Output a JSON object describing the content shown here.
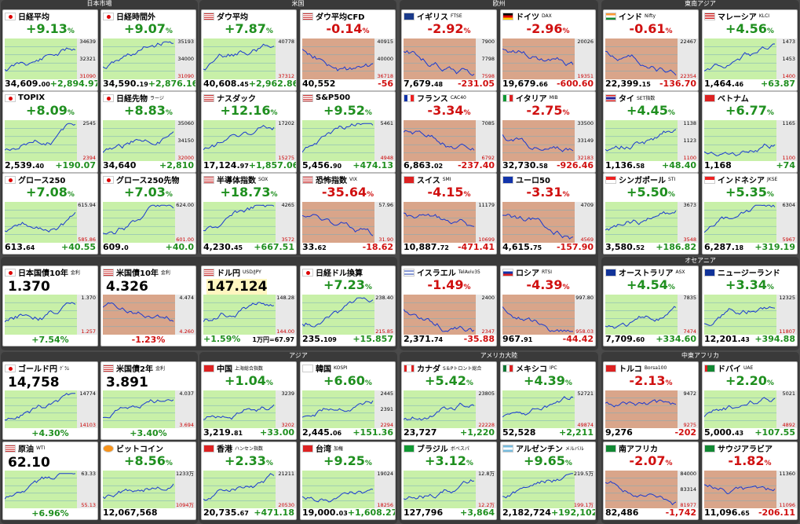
{
  "sections": {
    "japan": "日本市場",
    "us": "米国",
    "europe": "欧州",
    "east_asia": "東南アジア",
    "oceania": "オセアニア",
    "asia": "アジア",
    "americas": "アメリカ大陸",
    "mideast": "中東アフリカ"
  },
  "cards": [
    {
      "id": "nikkei",
      "flag": "jp",
      "title": "日経平均",
      "sub": "",
      "pct": "+9.13",
      "dir": "up",
      "value": "34,609.",
      "dec": "00",
      "chg": "+2,894.97",
      "ticks": [
        "34639",
        "32321",
        "31090"
      ]
    },
    {
      "id": "nikkei-night",
      "flag": "jp",
      "title": "日経時間外",
      "sub": "",
      "pct": "+9.07",
      "dir": "up",
      "value": "34,590.",
      "dec": "19",
      "chg": "+2,876.16",
      "ticks": [
        "35193",
        "34000",
        "31090"
      ]
    },
    {
      "id": "dow",
      "flag": "us",
      "title": "ダウ平均",
      "sub": "",
      "pct": "+7.87",
      "dir": "up",
      "value": "40,608.",
      "dec": "45",
      "chg": "+2,962.86",
      "ticks": [
        "40778",
        "37312"
      ]
    },
    {
      "id": "dow-cfd",
      "flag": "us",
      "title": "ダウ平均CFD",
      "sub": "",
      "pct": "-0.14",
      "dir": "dn",
      "value": "40,552",
      "dec": "",
      "chg": "-56",
      "ticks": [
        "40915",
        "40000",
        "36718"
      ]
    },
    {
      "id": "ftse",
      "flag": "gb",
      "title": "イギリス",
      "sub": "FTSE",
      "pct": "-2.92",
      "dir": "dn",
      "value": "7,679.",
      "dec": "48",
      "chg": "-231.05",
      "ticks": [
        "7900",
        "7798",
        "7598"
      ]
    },
    {
      "id": "dax",
      "flag": "de",
      "title": "ドイツ",
      "sub": "DAX",
      "pct": "-2.96",
      "dir": "dn",
      "value": "19,679.",
      "dec": "66",
      "chg": "-600.60",
      "ticks": [
        "20026",
        "19351"
      ]
    },
    {
      "id": "nifty",
      "flag": "in",
      "title": "インド",
      "sub": "Nifty",
      "pct": "-0.61",
      "dir": "dn",
      "value": "22,399.",
      "dec": "15",
      "chg": "-136.70",
      "ticks": [
        "22467",
        "22354"
      ]
    },
    {
      "id": "klci",
      "flag": "my",
      "title": "マレーシア",
      "sub": "KLCI",
      "pct": "+4.56",
      "dir": "up",
      "value": "1,464.",
      "dec": "46",
      "chg": "+63.87",
      "ticks": [
        "1473",
        "1453",
        "1400"
      ]
    },
    {
      "id": "topix",
      "flag": "jp",
      "title": "TOPIX",
      "sub": "",
      "pct": "+8.09",
      "dir": "up",
      "value": "2,539.",
      "dec": "40",
      "chg": "+190.07",
      "ticks": [
        "2545",
        "2394"
      ]
    },
    {
      "id": "nk-fut",
      "flag": "jp",
      "title": "日経先物",
      "sub": "ラージ",
      "pct": "+8.83",
      "dir": "up",
      "value": "34,640",
      "dec": "",
      "chg": "+2,810",
      "ticks": [
        "35060",
        "34150",
        "32000"
      ]
    },
    {
      "id": "nasdaq",
      "flag": "us",
      "title": "ナスダック",
      "sub": "",
      "pct": "+12.16",
      "dir": "up",
      "value": "17,124.",
      "dec": "97",
      "chg": "+1,857.06",
      "ticks": [
        "17202",
        "15275"
      ]
    },
    {
      "id": "sp500",
      "flag": "us",
      "title": "S&P500",
      "sub": "",
      "pct": "+9.52",
      "dir": "up",
      "value": "5,456.",
      "dec": "90",
      "chg": "+474.13",
      "ticks": [
        "5461",
        "4948"
      ]
    },
    {
      "id": "cac",
      "flag": "fr",
      "title": "フランス",
      "sub": "CAC40",
      "pct": "-3.34",
      "dir": "dn",
      "value": "6,863.",
      "dec": "02",
      "chg": "-237.40",
      "ticks": [
        "7085",
        "6792"
      ]
    },
    {
      "id": "mib",
      "flag": "it",
      "title": "イタリア",
      "sub": "MIB",
      "pct": "-2.75",
      "dir": "dn",
      "value": "32,730.",
      "dec": "58",
      "chg": "-926.46",
      "ticks": [
        "33500",
        "33149",
        "32183"
      ]
    },
    {
      "id": "set",
      "flag": "th",
      "title": "タイ",
      "sub": "SET指数",
      "pct": "+4.45",
      "dir": "up",
      "value": "1,136.",
      "dec": "58",
      "chg": "+48.40",
      "ticks": [
        "1138",
        "1123",
        "1100"
      ]
    },
    {
      "id": "vn",
      "flag": "vn",
      "title": "ベトナム",
      "sub": "",
      "pct": "+6.77",
      "dir": "up",
      "value": "1,168",
      "dec": "",
      "chg": "+74",
      "ticks": [
        "1165",
        "1100"
      ]
    },
    {
      "id": "growth250",
      "flag": "jp",
      "title": "グロース250",
      "sub": "",
      "pct": "+7.08",
      "dir": "up",
      "value": "613.",
      "dec": "64",
      "chg": "+40.55",
      "ticks": [
        "615.94",
        "585.86"
      ]
    },
    {
      "id": "growth-fut",
      "flag": "jp",
      "title": "グロース250先物",
      "sub": "",
      "pct": "+7.03",
      "dir": "up",
      "value": "609.",
      "dec": "0",
      "chg": "+40.0",
      "ticks": [
        "624.00",
        "601.00"
      ]
    },
    {
      "id": "sox",
      "flag": "us",
      "title": "半導体指数",
      "sub": "SOX",
      "pct": "+18.73",
      "dir": "up",
      "value": "4,230.",
      "dec": "45",
      "chg": "+667.51",
      "ticks": [
        "4265",
        "3572"
      ]
    },
    {
      "id": "vix",
      "flag": "us",
      "title": "恐怖指数",
      "sub": "VIX",
      "pct": "-35.64",
      "dir": "dn",
      "value": "33.",
      "dec": "62",
      "chg": "-18.62",
      "ticks": [
        "57.96",
        "31.90"
      ]
    },
    {
      "id": "smi",
      "flag": "ch",
      "title": "スイス",
      "sub": "SMI",
      "pct": "-4.15",
      "dir": "dn",
      "value": "10,887.",
      "dec": "72",
      "chg": "-471.41",
      "ticks": [
        "11179",
        "10699"
      ]
    },
    {
      "id": "euro50",
      "flag": "eu",
      "title": "ユーロ50",
      "sub": "",
      "pct": "-3.31",
      "dir": "dn",
      "value": "4,615.",
      "dec": "75",
      "chg": "-157.90",
      "ticks": [
        "4709",
        "4569"
      ]
    },
    {
      "id": "sti",
      "flag": "sg",
      "title": "シンガポール",
      "sub": "STI",
      "pct": "+5.50",
      "dir": "up",
      "value": "3,580.",
      "dec": "52",
      "chg": "+186.82",
      "ticks": [
        "3673",
        "3548"
      ]
    },
    {
      "id": "jkse",
      "flag": "id",
      "title": "インドネシア",
      "sub": "JKSE",
      "pct": "+5.35",
      "dir": "up",
      "value": "6,287.",
      "dec": "18",
      "chg": "+319.19",
      "ticks": [
        "6304",
        "5967"
      ]
    },
    {
      "id": "jgb10",
      "flag": "jp",
      "title": "日本国債10年",
      "sub": "金利",
      "level": "1.370",
      "foot": "+7.54%",
      "dir": "up",
      "ticks": [
        "1.370",
        "1.257"
      ]
    },
    {
      "id": "ust10",
      "flag": "us",
      "title": "米国債10年",
      "sub": "金利",
      "level": "4.326",
      "foot": "-1.23%",
      "dir": "dn",
      "ticks": [
        "4.474",
        "4.260"
      ]
    },
    {
      "id": "usdjpy",
      "flag": "us",
      "title": "ドル円",
      "sub": "USD/JPY",
      "level": "147.124",
      "pct": "+1.59%",
      "extra": "1万円=67.97",
      "dir": "up",
      "ticks": [
        "148.28",
        "144.00"
      ]
    },
    {
      "id": "nk-usd",
      "flag": "jp",
      "title": "日経ドル換算",
      "sub": "",
      "pct": "+7.23",
      "dir": "up",
      "value": "235.",
      "dec": "109",
      "chg": "+15.857",
      "ticks": [
        "238.40",
        "215.85"
      ]
    },
    {
      "id": "ta35",
      "flag": "il",
      "title": "イスラエル",
      "sub": "TelAviv35",
      "pct": "-1.49",
      "dir": "dn",
      "value": "2,371.",
      "dec": "74",
      "chg": "-35.88",
      "ticks": [
        "2400",
        "2347"
      ]
    },
    {
      "id": "rtsi",
      "flag": "ru",
      "title": "ロシア",
      "sub": "RTSI",
      "pct": "-4.39",
      "dir": "dn",
      "value": "967.",
      "dec": "91",
      "chg": "-44.42",
      "ticks": [
        "997.80",
        "958.03"
      ]
    },
    {
      "id": "asx",
      "flag": "au",
      "title": "オーストラリア",
      "sub": "ASX",
      "pct": "+4.54",
      "dir": "up",
      "value": "7,709.",
      "dec": "60",
      "chg": "+334.60",
      "ticks": [
        "7835",
        "7474"
      ]
    },
    {
      "id": "nz",
      "flag": "nz",
      "title": "ニュージーランド",
      "sub": "",
      "pct": "+3.34",
      "dir": "up",
      "value": "12,201.",
      "dec": "43",
      "chg": "+394.88",
      "ticks": [
        "12325",
        "11807"
      ]
    },
    {
      "id": "gold",
      "flag": "jp",
      "title": "ゴールド円",
      "sub": "ｸﾞﾗﾑ",
      "level": "14,758",
      "foot": "+4.30%",
      "dir": "up",
      "ticks": [
        "14774",
        "14103"
      ]
    },
    {
      "id": "ust2",
      "flag": "us",
      "title": "米国債2年",
      "sub": "金利",
      "level": "3.891",
      "foot": "+3.40%",
      "dir": "up",
      "ticks": [
        "4.037",
        "3.694"
      ]
    },
    {
      "id": "china",
      "flag": "cn",
      "title": "中国",
      "sub": "上海総合指数",
      "pct": "+1.04",
      "dir": "up",
      "value": "3,219.",
      "dec": "81",
      "chg": "+33.00",
      "ticks": [
        "3239",
        "3202"
      ]
    },
    {
      "id": "kospi",
      "flag": "kr",
      "title": "韓国",
      "sub": "KOSPI",
      "pct": "+6.60",
      "dir": "up",
      "value": "2,445.",
      "dec": "06",
      "chg": "+151.36",
      "ticks": [
        "2445",
        "2391",
        "2294"
      ]
    },
    {
      "id": "canada",
      "flag": "ca",
      "title": "カナダ",
      "sub": "S＆Pトロント総合",
      "pct": "+5.42",
      "dir": "up",
      "value": "23,727",
      "dec": "",
      "chg": "+1,220",
      "ticks": [
        "23805",
        "22228"
      ]
    },
    {
      "id": "mexico",
      "flag": "mx",
      "title": "メキシコ",
      "sub": "IPC",
      "pct": "+4.39",
      "dir": "up",
      "value": "52,528",
      "dec": "",
      "chg": "+2,211",
      "ticks": [
        "52721",
        "49874"
      ]
    },
    {
      "id": "turkey",
      "flag": "tr",
      "title": "トルコ",
      "sub": "Borsa100",
      "pct": "-2.13",
      "dir": "dn",
      "value": "9,276",
      "dec": "",
      "chg": "-202",
      "ticks": [
        "9472",
        "9275"
      ]
    },
    {
      "id": "dubai",
      "flag": "ae",
      "title": "ドバイ",
      "sub": "UAE",
      "pct": "+2.20",
      "dir": "up",
      "value": "5,000.",
      "dec": "43",
      "chg": "+107.55",
      "ticks": [
        "5021",
        "4892"
      ]
    },
    {
      "id": "wti",
      "flag": "us",
      "title": "原油",
      "sub": "WTI",
      "level": "62.10",
      "foot": "+6.96%",
      "dir": "up",
      "ticks": [
        "63.33",
        "55.13"
      ]
    },
    {
      "id": "btc",
      "flag": "btc",
      "title": "ビットコイン",
      "sub": "",
      "pct": "+8.56",
      "dir": "up",
      "value": "12,067,568",
      "dec": "",
      "chg": "",
      "ticks": [
        "1233万",
        "1094万"
      ]
    },
    {
      "id": "hk",
      "flag": "hk",
      "title": "香港",
      "sub": "ハンセン指数",
      "pct": "+2.33",
      "dir": "up",
      "value": "20,735.",
      "dec": "67",
      "chg": "+471.18",
      "ticks": [
        "21211",
        "20530"
      ]
    },
    {
      "id": "taiwan",
      "flag": "tw",
      "title": "台湾",
      "sub": "加権",
      "pct": "+9.25",
      "dir": "up",
      "value": "19,000.",
      "dec": "03",
      "chg": "+1,608.27",
      "ticks": [
        "19024",
        "18256"
      ]
    },
    {
      "id": "brazil",
      "flag": "br",
      "title": "ブラジル",
      "sub": "ボベスパ",
      "pct": "+3.12",
      "dir": "up",
      "value": "127,796",
      "dec": "",
      "chg": "+3,864",
      "ticks": [
        "12.8万",
        "12.2万"
      ]
    },
    {
      "id": "argentina",
      "flag": "ar",
      "title": "アルゼンチン",
      "sub": "メルバル",
      "pct": "+9.65",
      "dir": "up",
      "value": "2,182,724",
      "dec": "",
      "chg": "+192,102",
      "ticks": [
        "219.5万",
        "199.1万"
      ]
    },
    {
      "id": "safrica",
      "flag": "za",
      "title": "南アフリカ",
      "sub": "",
      "pct": "-2.07",
      "dir": "dn",
      "value": "82,486",
      "dec": "",
      "chg": "-1,742",
      "ticks": [
        "84000",
        "83314",
        "81977"
      ]
    },
    {
      "id": "saudi",
      "flag": "sa",
      "title": "サウジアラビア",
      "sub": "",
      "pct": "-1.82",
      "dir": "dn",
      "value": "11,096.",
      "dec": "65",
      "chg": "-206.11",
      "ticks": [
        "11360",
        "11096"
      ]
    }
  ]
}
